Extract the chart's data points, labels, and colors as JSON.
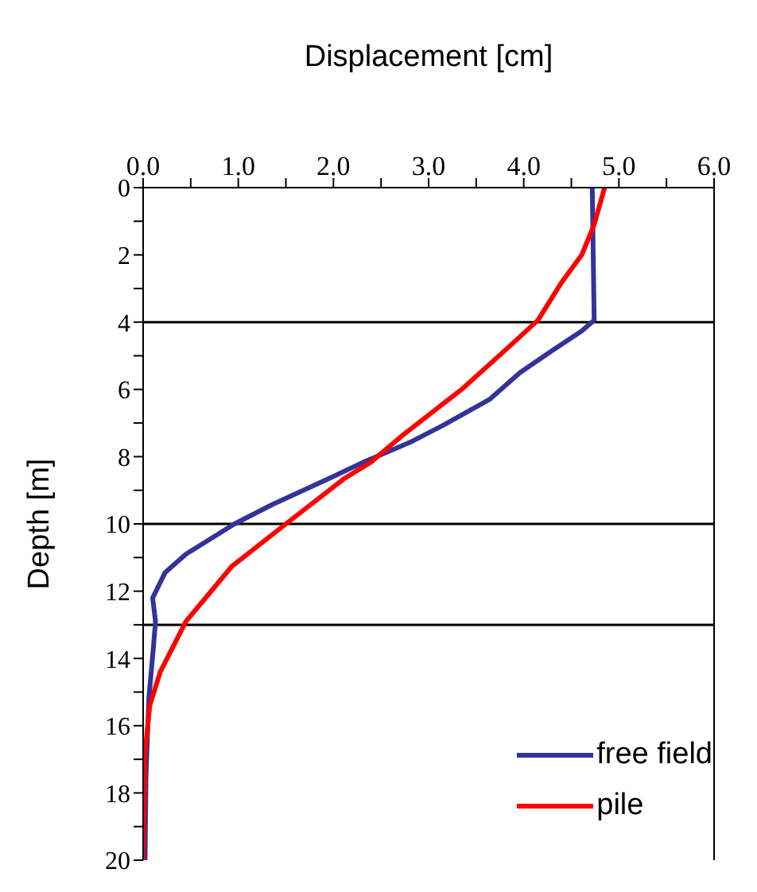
{
  "chart_data": {
    "type": "line",
    "xlabel": "Displacement [cm]",
    "ylabel": "Depth [m]",
    "xlim": [
      0,
      6
    ],
    "ylim": [
      20,
      0
    ],
    "xticks": [
      {
        "value": 0,
        "label": "0.0"
      },
      {
        "value": 0.5,
        "label": null
      },
      {
        "value": 1,
        "label": "1.0"
      },
      {
        "value": 1.5,
        "label": null
      },
      {
        "value": 2,
        "label": "2.0"
      },
      {
        "value": 2.5,
        "label": null
      },
      {
        "value": 3,
        "label": "3.0"
      },
      {
        "value": 3.5,
        "label": null
      },
      {
        "value": 4,
        "label": "4.0"
      },
      {
        "value": 4.5,
        "label": null
      },
      {
        "value": 5,
        "label": "5.0"
      },
      {
        "value": 5.5,
        "label": null
      },
      {
        "value": 6,
        "label": "6.0"
      }
    ],
    "yticks": [
      0,
      {
        "value": 1,
        "label": null
      },
      2,
      {
        "value": 3,
        "label": null
      },
      4,
      {
        "value": 5,
        "label": null
      },
      6,
      {
        "value": 7,
        "label": null
      },
      8,
      {
        "value": 9,
        "label": null
      },
      10,
      {
        "value": 11,
        "label": null
      },
      12,
      {
        "value": 13,
        "label": null
      },
      14,
      {
        "value": 15,
        "label": null
      },
      16,
      {
        "value": 17,
        "label": null
      },
      18,
      {
        "value": 19,
        "label": null
      },
      20
    ],
    "series": [
      {
        "name": "free field",
        "color": "#333399",
        "x": [
          4.72,
          4.73,
          4.74,
          4.61,
          4.28,
          3.96,
          3.64,
          3.15,
          2.83,
          2.45,
          2.31,
          1.96,
          1.36,
          0.96,
          0.45,
          0.23,
          0.1,
          0.13,
          0.11,
          0.06,
          0.03,
          0.02
        ],
        "values": [
          0,
          2,
          3.94,
          4.26,
          4.88,
          5.5,
          6.3,
          7.07,
          7.54,
          8,
          8.17,
          8.64,
          9.42,
          10,
          10.9,
          11.45,
          12.2,
          12.9,
          13.6,
          15.2,
          17.5,
          20
        ]
      },
      {
        "name": "pile",
        "color": "#ff0000",
        "x": [
          4.85,
          4.74,
          4.61,
          4.39,
          4.15,
          3.85,
          3.36,
          2.72,
          2.39,
          2.12,
          1.5,
          0.93,
          0.45,
          0.18,
          0.07,
          0.02,
          0
        ],
        "values": [
          0,
          1.1,
          2,
          2.85,
          3.94,
          4.72,
          5.97,
          7.38,
          8.17,
          8.64,
          10,
          11.27,
          12.9,
          14.4,
          15.4,
          16.8,
          20
        ]
      }
    ],
    "ref_lines": [
      {
        "axis": "y",
        "value": 4,
        "color": "#000000"
      },
      {
        "axis": "y",
        "value": 10,
        "color": "#000000"
      },
      {
        "axis": "y",
        "value": 13,
        "color": "#000000"
      }
    ],
    "legend": "bottom right",
    "grid": false,
    "marker": "none",
    "line_style": "solid"
  }
}
